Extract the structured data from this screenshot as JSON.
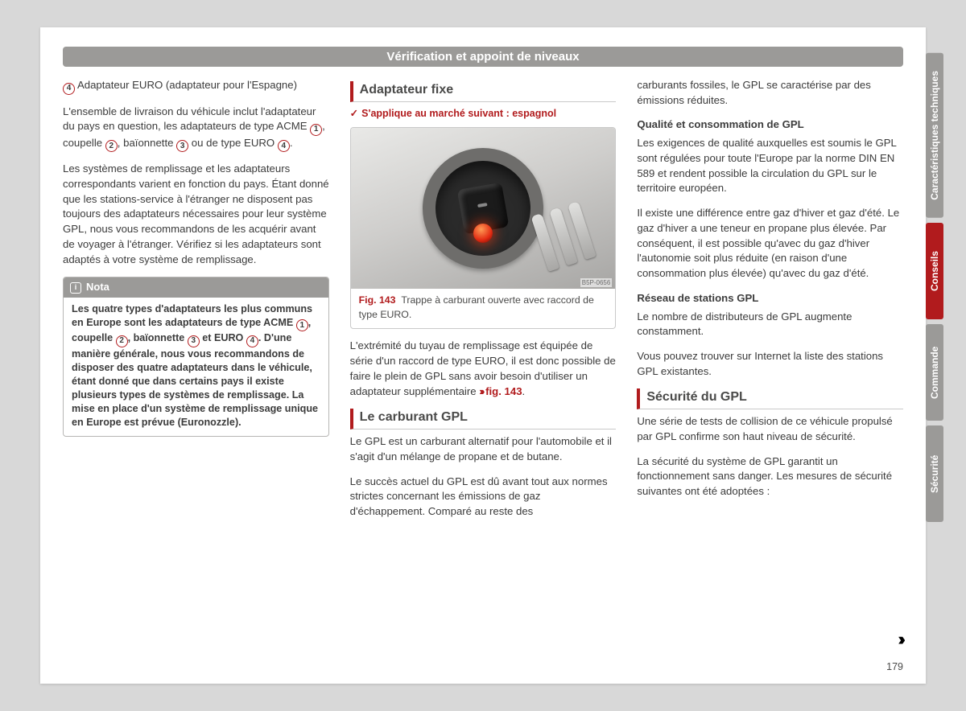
{
  "header": "Vérification et appoint de niveaux",
  "col1": {
    "item4_num": "4",
    "item4_text": "Adaptateur EURO (adaptateur pour l'Espagne)",
    "para1_a": "L'ensemble de livraison du véhicule inclut l'adaptateur du pays en question, les adaptateurs de type ACME ",
    "para1_b": ", coupelle ",
    "para1_c": ", baïonnette ",
    "para1_d": " ou de type EURO ",
    "para1_e": ".",
    "para2": "Les systèmes de remplissage et les adaptateurs correspondants varient en fonction du pays. Étant donné que les stations-service à l'étranger ne disposent pas toujours des adaptateurs nécessaires pour leur système GPL, nous vous recommandons de les acquérir avant de voyager à l'étranger. Vérifiez si les adaptateurs sont adaptés à votre système de remplissage.",
    "nota_title": "Nota",
    "nota_a": "Les quatre types d'adaptateurs les plus communs en Europe sont les adaptateurs de type ACME ",
    "nota_b": ", coupelle ",
    "nota_c": ", baïonnette ",
    "nota_d": " et EURO ",
    "nota_e": ". D'une manière générale, nous vous recommandons de disposer des quatre adaptateurs dans le véhicule, étant donné que dans certains pays il existe plusieurs types de systèmes de remplissage. La mise en place d'un système de remplissage unique en Europe est prévue (Euronozzle)."
  },
  "col2": {
    "title1": "Adaptateur fixe",
    "subtitle1": "S'applique au marché suivant : espagnol",
    "img_code": "B5P-0656",
    "fig_label": "Fig. 143",
    "fig_caption": "Trappe à carburant ouverte avec raccord de type EURO.",
    "para1_a": "L'extrémité du tuyau de remplissage est équipée de série d'un raccord de type EURO, il est donc possible de faire le plein de GPL sans avoir besoin d'utiliser un adaptateur supplémentaire ",
    "para1_ref": "fig. 143",
    "title2": "Le carburant GPL",
    "para2": "Le GPL est un carburant alternatif pour l'automobile et il s'agit d'un mélange de propane et de butane.",
    "para3": "Le succès actuel du GPL est dû avant tout aux normes strictes concernant les émissions de gaz d'échappement. Comparé au reste des"
  },
  "col3": {
    "para1": "carburants fossiles, le GPL se caractérise par des émissions réduites.",
    "sub1": "Qualité et consommation de GPL",
    "para2": "Les exigences de qualité auxquelles est soumis le GPL sont régulées pour toute l'Europe par la norme DIN EN 589 et rendent possible la circulation du GPL sur le territoire européen.",
    "para3": "Il existe une différence entre gaz d'hiver et gaz d'été. Le gaz d'hiver a une teneur en propane plus élevée. Par conséquent, il est possible qu'avec du gaz d'hiver l'autonomie soit plus réduite (en raison d'une consommation plus élevée) qu'avec du gaz d'été.",
    "sub2": "Réseau de stations GPL",
    "para4": "Le nombre de distributeurs de GPL augmente constamment.",
    "para5": "Vous pouvez trouver sur Internet la liste des stations GPL existantes.",
    "title3": "Sécurité du GPL",
    "para6": "Une série de tests de collision de ce véhicule propulsé par GPL confirme son haut niveau de sécurité.",
    "para7": "La sécurité du système de GPL garantit un fonctionnement sans danger. Les mesures de sécurité suivantes ont été adoptées :"
  },
  "circled": {
    "n1": "1",
    "n2": "2",
    "n3": "3",
    "n4": "4"
  },
  "page_number": "179",
  "tabs": {
    "t1": "Caractéristiques techniques",
    "t2": "Conseils",
    "t3": "Commande",
    "t4": "Sécurité"
  },
  "colors": {
    "red": "#b11b1d",
    "grey": "#9b9a98"
  }
}
